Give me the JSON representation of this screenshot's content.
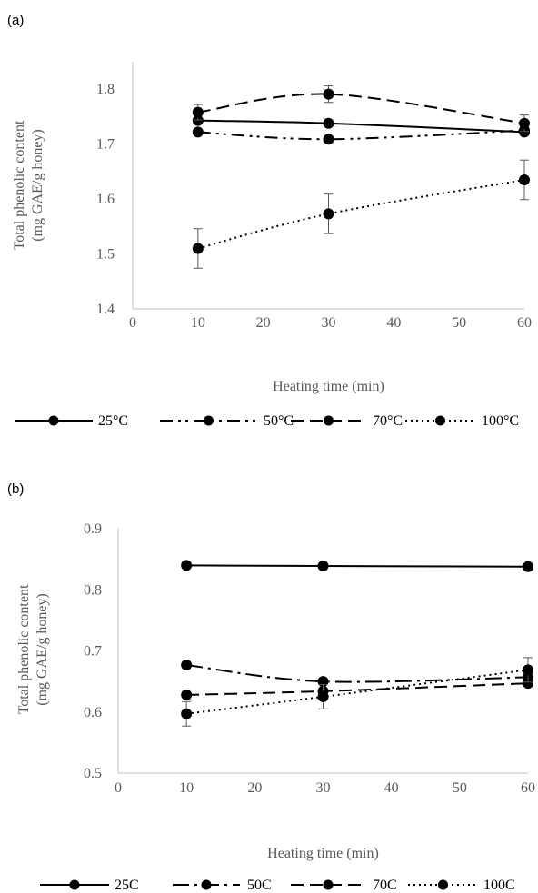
{
  "chart_data": [
    {
      "panel_label": "(a)",
      "type": "line",
      "xlabel": "Heating time (min)",
      "ylabel": "Total phenolic content (mg GAE/g honey)",
      "ylabel_lines": [
        "Total phenolic content",
        "(mg GAE/g honey)"
      ],
      "xlim": [
        0,
        60
      ],
      "ylim": [
        1.4,
        1.85
      ],
      "xticks": [
        0,
        10,
        20,
        30,
        40,
        50,
        60
      ],
      "yticks": [
        1.4,
        1.5,
        1.6,
        1.7,
        1.8
      ],
      "ytick_labels": [
        "1.4",
        "1.5",
        "1.6",
        "1.7",
        "1.8"
      ],
      "grid": false,
      "legend_position": "bottom",
      "x": [
        10,
        30,
        60
      ],
      "series": [
        {
          "name": "25°C",
          "style": "solid",
          "values": [
            1.743,
            1.738,
            1.722
          ],
          "errors": [
            0.005,
            0.004,
            0.004
          ]
        },
        {
          "name": "50°C",
          "style": "dashdotdot",
          "values": [
            1.722,
            1.709,
            1.725
          ],
          "errors": [
            0.004,
            0.004,
            0.004
          ]
        },
        {
          "name": "70°C",
          "style": "dashed",
          "values": [
            1.758,
            1.791,
            1.738
          ],
          "errors": [
            0.014,
            0.015,
            0.015
          ]
        },
        {
          "name": "100°C",
          "style": "dotted",
          "values": [
            1.51,
            1.573,
            1.635
          ],
          "errors": [
            0.036,
            0.036,
            0.036
          ]
        }
      ]
    },
    {
      "panel_label": "(b)",
      "type": "line",
      "xlabel": "Heating time (min)",
      "ylabel": "Total phenolic content (mg GAE/g honey)",
      "ylabel_lines": [
        "Total phenolic content",
        "(mg GAE/g honey)"
      ],
      "xlim": [
        0,
        60
      ],
      "ylim": [
        0.5,
        0.9
      ],
      "xticks": [
        0,
        10,
        20,
        30,
        40,
        50,
        60
      ],
      "yticks": [
        0.5,
        0.6,
        0.7,
        0.8,
        0.9
      ],
      "ytick_labels": [
        "0.5",
        "0.6",
        "0.7",
        "0.8",
        "0.9"
      ],
      "grid": false,
      "legend_position": "bottom",
      "x": [
        10,
        30,
        60
      ],
      "series": [
        {
          "name": "25C",
          "style": "solid",
          "values": [
            0.84,
            0.839,
            0.838
          ],
          "errors": [
            0.002,
            0.002,
            0.002
          ]
        },
        {
          "name": "50C",
          "style": "longdashdot",
          "values": [
            0.677,
            0.65,
            0.657
          ],
          "errors": [
            0.004,
            0.004,
            0.004
          ]
        },
        {
          "name": "70C",
          "style": "dashed",
          "values": [
            0.628,
            0.634,
            0.647
          ],
          "errors": [
            0.004,
            0.004,
            0.004
          ]
        },
        {
          "name": "100C",
          "style": "dotted",
          "values": [
            0.597,
            0.625,
            0.669
          ],
          "errors": [
            0.02,
            0.02,
            0.02
          ]
        }
      ]
    }
  ]
}
